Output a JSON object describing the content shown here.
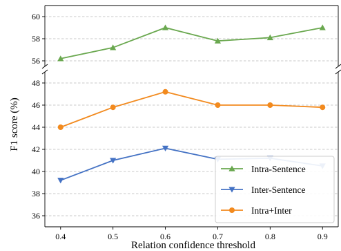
{
  "chart_data": {
    "type": "line",
    "xlabel": "Relation confidence threshold",
    "ylabel": "F1 score (%)",
    "x": [
      0.4,
      0.5,
      0.6,
      0.7,
      0.8,
      0.9
    ],
    "x_tick_labels": [
      "0.4",
      "0.5",
      "0.6",
      "0.7",
      "0.8",
      "0.9"
    ],
    "broken_y_axis": true,
    "grid": "horizontal",
    "legend_position": "lower-right",
    "panels": [
      {
        "position": "top",
        "ylim": [
          55.5,
          61
        ],
        "y_ticks": [
          56,
          58,
          60
        ],
        "y_tick_labels": [
          "56",
          "58",
          "60"
        ]
      },
      {
        "position": "bottom",
        "ylim": [
          35,
          49
        ],
        "y_ticks": [
          36,
          38,
          40,
          42,
          44,
          46,
          48
        ],
        "y_tick_labels": [
          "36",
          "38",
          "40",
          "42",
          "44",
          "46",
          "48"
        ]
      }
    ],
    "series": [
      {
        "name": "Intra-Sentence",
        "panel": "top",
        "marker": "triangle-up",
        "color": "#6aa84f",
        "values": [
          56.2,
          57.2,
          59.0,
          57.8,
          58.1,
          59.0
        ]
      },
      {
        "name": "Inter-Sentence",
        "panel": "bottom",
        "marker": "triangle-down",
        "color": "#4472c4",
        "values": [
          39.2,
          41.0,
          42.1,
          41.1,
          41.2,
          40.5
        ]
      },
      {
        "name": "Intra+Inter",
        "panel": "bottom",
        "marker": "circle",
        "color": "#f28a1e",
        "values": [
          44.0,
          45.8,
          47.2,
          46.0,
          46.0,
          45.8
        ]
      }
    ]
  }
}
